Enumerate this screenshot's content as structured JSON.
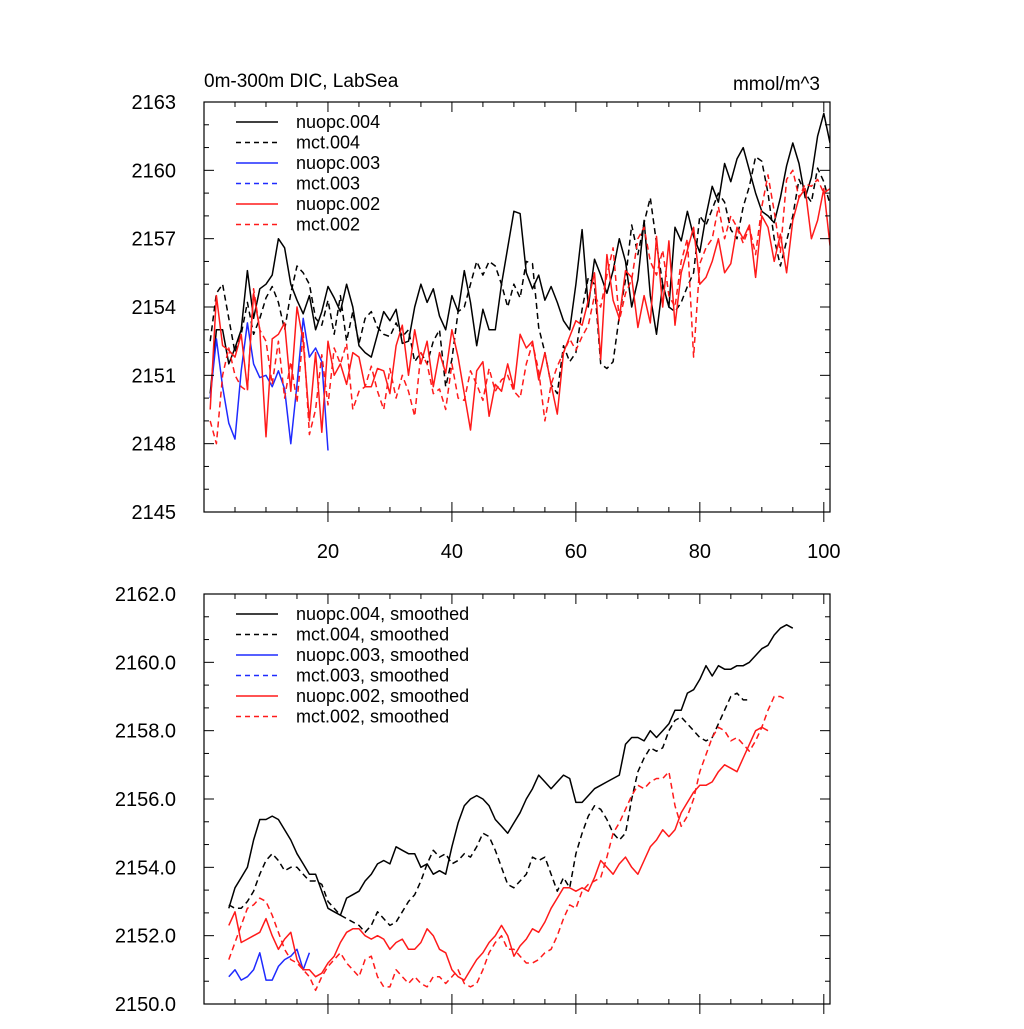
{
  "chart_data": [
    {
      "type": "line",
      "title": "0m-300m DIC, LabSea",
      "units_label": "mmol/m^3",
      "xlabel": "",
      "ylabel": "",
      "xlim": [
        0,
        101
      ],
      "ylim": [
        2145,
        2163
      ],
      "xticks": [
        20,
        40,
        60,
        80,
        100
      ],
      "yticks": [
        2145,
        2148,
        2151,
        2154,
        2157,
        2160,
        2163
      ],
      "ytick_labels": [
        "2145",
        "2148",
        "2151",
        "2154",
        "2157",
        "2160",
        "2163"
      ],
      "series": [
        {
          "name": "nuopc.004",
          "color": "#000000",
          "dash": "solid",
          "start_x": 1,
          "values": [
            2150.2,
            2153.0,
            2153.0,
            2151.5,
            2152.2,
            2153.0,
            2155.6,
            2153.5,
            2154.8,
            2155.0,
            2155.4,
            2157.0,
            2156.6,
            2155.0,
            2154.3,
            2153.7,
            2154.5,
            2153.0,
            2153.8,
            2154.9,
            2154.4,
            2153.8,
            2155.0,
            2154.0,
            2152.3,
            2152.0,
            2151.8,
            2152.8,
            2153.8,
            2153.4,
            2153.9,
            2152.4,
            2152.5,
            2154.0,
            2155.0,
            2154.2,
            2154.8,
            2153.6,
            2153.0,
            2154.5,
            2153.8,
            2155.6,
            2154.2,
            2152.3,
            2153.9,
            2153.0,
            2153.0,
            2155.0,
            2156.6,
            2158.2,
            2158.1,
            2155.5,
            2154.8,
            2155.4,
            2154.3,
            2154.9,
            2154.2,
            2153.4,
            2153.0,
            2155.0,
            2157.4,
            2154.0,
            2156.1,
            2155.4,
            2154.6,
            2155.6,
            2157.0,
            2156.0,
            2154.0,
            2155.2,
            2157.8,
            2154.5,
            2152.8,
            2155.0,
            2154.0,
            2157.5,
            2156.9,
            2158.2,
            2157.1,
            2156.4,
            2158.0,
            2159.3,
            2158.6,
            2160.3,
            2159.5,
            2160.5,
            2161.0,
            2160.0,
            2159.0,
            2158.2,
            2158.0,
            2157.7,
            2158.8,
            2160.2,
            2161.2,
            2160.3,
            2158.8,
            2159.7,
            2161.5,
            2162.5,
            2161.2
          ]
        },
        {
          "name": "mct.004",
          "color": "#000000",
          "dash": "6,4",
          "start_x": 1,
          "values": [
            2152.5,
            2154.6,
            2155.0,
            2153.5,
            2152.0,
            2152.8,
            2154.2,
            2152.8,
            2153.5,
            2154.4,
            2154.9,
            2154.2,
            2153.0,
            2154.6,
            2155.8,
            2155.5,
            2155.0,
            2153.5,
            2153.2,
            2154.3,
            2152.8,
            2154.5,
            2152.5,
            2153.8,
            2152.4,
            2153.5,
            2153.8,
            2153.1,
            2152.8,
            2152.7,
            2153.3,
            2152.7,
            2153.0,
            2151.6,
            2152.0,
            2151.5,
            2152.5,
            2153.0,
            2150.5,
            2151.7,
            2153.8,
            2154.0,
            2155.0,
            2156.0,
            2155.4,
            2156.0,
            2155.8,
            2155.0,
            2154.0,
            2155.0,
            2154.4,
            2156.0,
            2155.9,
            2153.1,
            2152.0,
            2150.6,
            2150.2,
            2152.3,
            2151.6,
            2152.0,
            2153.9,
            2155.3,
            2155.0,
            2151.5,
            2151.3,
            2151.6,
            2153.6,
            2155.2,
            2157.6,
            2156.3,
            2157.7,
            2158.8,
            2156.8,
            2155.0,
            2154.0,
            2153.8,
            2154.2,
            2154.9,
            2155.5,
            2158.0,
            2157.6,
            2158.3,
            2159.0,
            2158.6,
            2157.4,
            2157.0,
            2158.4,
            2159.3,
            2160.6,
            2160.4,
            2159.0,
            2157.0,
            2155.8,
            2156.9,
            2158.0,
            2159.6,
            2159.0,
            2158.6,
            2160.1,
            2159.5,
            2158.5
          ]
        },
        {
          "name": "nuopc.003",
          "color": "#1f2bff",
          "dash": "solid",
          "start_x": 1,
          "values": [
            2150.0,
            2152.6,
            2150.5,
            2148.9,
            2148.2,
            2151.2,
            2153.3,
            2151.5,
            2150.9,
            2151.0,
            2150.5,
            2151.2,
            2150.4,
            2148.0,
            2150.6,
            2153.5,
            2151.8,
            2152.2,
            2151.6,
            2147.7
          ]
        },
        {
          "name": "mct.003",
          "color": "#1f2bff",
          "dash": "6,4",
          "start_x": 1,
          "values": []
        },
        {
          "name": "nuopc.002",
          "color": "#ff1a1a",
          "dash": "solid",
          "start_x": 1,
          "values": [
            2149.5,
            2154.5,
            2152.3,
            2152.1,
            2151.8,
            2152.8,
            2150.4,
            2154.6,
            2153.0,
            2148.3,
            2152.6,
            2152.8,
            2153.3,
            2150.3,
            2154.0,
            2152.5,
            2149.0,
            2152.0,
            2148.5,
            2152.5,
            2151.0,
            2151.5,
            2150.6,
            2152.0,
            2151.8,
            2150.5,
            2150.5,
            2151.3,
            2151.2,
            2150.2,
            2152.3,
            2153.2,
            2151.0,
            2153.0,
            2151.5,
            2152.5,
            2150.5,
            2152.0,
            2151.1,
            2153.0,
            2151.8,
            2150.2,
            2148.6,
            2151.2,
            2151.6,
            2149.2,
            2150.6,
            2150.3,
            2151.5,
            2150.4,
            2152.8,
            2152.2,
            2152.5,
            2150.8,
            2152.0,
            2150.6,
            2149.3,
            2152.0,
            2152.7,
            2153.4,
            2153.2,
            2154.3,
            2155.5,
            2151.7,
            2156.3,
            2154.3,
            2153.5,
            2155.6,
            2155.3,
            2153.1,
            2154.5,
            2153.3,
            2157.1,
            2154.0,
            2156.9,
            2153.2,
            2155.5,
            2156.5,
            2157.5,
            2155.0,
            2155.3,
            2156.0,
            2157.0,
            2155.5,
            2155.9,
            2157.5,
            2157.0,
            2157.6,
            2155.3,
            2158.0,
            2157.5,
            2156.0,
            2157.2,
            2155.5,
            2157.8,
            2158.8,
            2159.2,
            2157.0,
            2157.8,
            2159.2,
            2156.7
          ]
        },
        {
          "name": "mct.002",
          "color": "#ff1a1a",
          "dash": "6,4",
          "start_x": 1,
          "values": [
            2149.0,
            2148.0,
            2151.0,
            2152.2,
            2151.0,
            2150.5,
            2150.3,
            2154.8,
            2153.0,
            2152.5,
            2150.6,
            2152.5,
            2150.0,
            2151.6,
            2149.8,
            2152.9,
            2148.4,
            2149.5,
            2151.9,
            2149.7,
            2152.2,
            2151.5,
            2152.4,
            2149.5,
            2150.3,
            2150.5,
            2151.4,
            2150.3,
            2149.5,
            2151.3,
            2150.0,
            2151.0,
            2150.3,
            2149.2,
            2152.0,
            2151.5,
            2150.2,
            2150.4,
            2149.5,
            2151.5,
            2150.0,
            2149.9,
            2151.2,
            2150.6,
            2149.9,
            2151.3,
            2150.3,
            2150.8,
            2151.0,
            2150.3,
            2150.0,
            2151.5,
            2152.4,
            2151.2,
            2149.0,
            2150.6,
            2151.4,
            2152.0,
            2152.6,
            2152.1,
            2152.7,
            2153.2,
            2154.5,
            2154.0,
            2155.4,
            2156.6,
            2153.4,
            2154.6,
            2155.2,
            2157.0,
            2157.5,
            2156.0,
            2155.4,
            2156.5,
            2154.5,
            2154.0,
            2156.0,
            2157.0,
            2151.8,
            2155.9,
            2156.6,
            2157.0,
            2158.4,
            2157.0,
            2158.0,
            2157.5,
            2156.8,
            2157.5,
            2156.3,
            2158.4,
            2159.8,
            2158.2,
            2156.4,
            2159.6,
            2160.0,
            2158.8,
            2159.4,
            2159.3,
            2159.6,
            2159.0,
            2159.2
          ]
        }
      ],
      "legend": [
        "nuopc.004",
        "mct.004",
        "nuopc.003",
        "mct.003",
        "nuopc.002",
        "mct.002"
      ],
      "legend_location": "top-left"
    },
    {
      "type": "line",
      "title": "",
      "xlabel": "",
      "ylabel": "",
      "xlim": [
        0,
        101
      ],
      "ylim": [
        2150,
        2162
      ],
      "xticks": [
        20,
        40,
        60,
        80,
        100
      ],
      "yticks": [
        2150,
        2152,
        2154,
        2156,
        2158,
        2160,
        2162
      ],
      "ytick_labels": [
        "2150.0",
        "2152.0",
        "2154.0",
        "2156.0",
        "2158.0",
        "2160.0",
        "2162.0"
      ],
      "series": [
        {
          "name": "nuopc.004, smoothed",
          "color": "#000000",
          "dash": "solid",
          "start_x": 4,
          "values": [
            2152.8,
            2153.4,
            2153.7,
            2154.0,
            2154.8,
            2155.4,
            2155.4,
            2155.5,
            2155.4,
            2155.1,
            2154.8,
            2154.4,
            2154.1,
            2153.8,
            2153.8,
            2153.3,
            2152.8,
            2152.7,
            2152.6,
            2153.1,
            2153.2,
            2153.3,
            2153.6,
            2153.8,
            2154.1,
            2154.2,
            2154.1,
            2154.6,
            2154.5,
            2154.4,
            2154.4,
            2154.0,
            2154.1,
            2153.8,
            2153.9,
            2153.8,
            2154.6,
            2155.3,
            2155.8,
            2156.0,
            2156.1,
            2156.0,
            2155.8,
            2155.4,
            2155.2,
            2155.0,
            2155.3,
            2155.6,
            2156.0,
            2156.3,
            2156.7,
            2156.5,
            2156.3,
            2156.5,
            2156.7,
            2156.6,
            2155.9,
            2155.9,
            2156.1,
            2156.3,
            2156.4,
            2156.5,
            2156.6,
            2156.7,
            2157.6,
            2157.8,
            2157.8,
            2157.7,
            2158.0,
            2157.8,
            2158.0,
            2158.2,
            2158.6,
            2158.6,
            2159.1,
            2159.2,
            2159.5,
            2159.9,
            2159.6,
            2159.9,
            2159.8,
            2159.8,
            2159.9,
            2159.9,
            2160.0,
            2160.2,
            2160.4,
            2160.5,
            2160.8,
            2161.0,
            2161.1,
            2161.0
          ]
        },
        {
          "name": "mct.004, smoothed",
          "color": "#000000",
          "dash": "6,4",
          "start_x": 4,
          "values": [
            2152.9,
            2152.8,
            2152.8,
            2153.0,
            2153.3,
            2153.8,
            2154.2,
            2154.4,
            2154.2,
            2153.9,
            2154.0,
            2154.0,
            2153.8,
            2153.6,
            2153.6,
            2153.5,
            2153.0,
            2152.8,
            2152.6,
            2152.5,
            2152.4,
            2152.3,
            2152.1,
            2152.3,
            2152.7,
            2152.5,
            2152.3,
            2152.4,
            2152.7,
            2153.0,
            2153.2,
            2153.6,
            2154.1,
            2154.5,
            2154.3,
            2154.4,
            2154.1,
            2154.2,
            2154.4,
            2154.3,
            2154.6,
            2155.0,
            2154.9,
            2154.5,
            2154.0,
            2153.5,
            2153.4,
            2153.6,
            2153.8,
            2154.3,
            2154.2,
            2154.3,
            2153.8,
            2153.3,
            2153.7,
            2153.4,
            2154.4,
            2155.0,
            2155.5,
            2155.8,
            2155.7,
            2155.4,
            2155.0,
            2154.8,
            2155.0,
            2156.0,
            2156.8,
            2157.2,
            2157.5,
            2157.4,
            2157.5,
            2158.0,
            2158.3,
            2158.4,
            2158.2,
            2158.0,
            2157.8,
            2157.7,
            2157.8,
            2158.2,
            2158.6,
            2159.0,
            2159.1,
            2158.9,
            2158.9
          ]
        },
        {
          "name": "nuopc.003, smoothed",
          "color": "#1f2bff",
          "dash": "solid",
          "start_x": 4,
          "values": [
            2150.8,
            2151.0,
            2150.7,
            2150.8,
            2151.0,
            2151.5,
            2150.7,
            2150.7,
            2151.1,
            2151.3,
            2151.4,
            2151.6,
            2151.0,
            2151.5
          ]
        },
        {
          "name": "mct.003, smoothed",
          "color": "#1f2bff",
          "dash": "6,4",
          "start_x": 4,
          "values": []
        },
        {
          "name": "nuopc.002, smoothed",
          "color": "#ff1a1a",
          "dash": "solid",
          "start_x": 4,
          "values": [
            2152.3,
            2152.7,
            2151.8,
            2151.9,
            2152.0,
            2152.1,
            2152.5,
            2152.0,
            2151.6,
            2151.9,
            2152.1,
            2151.3,
            2151.0,
            2151.0,
            2150.8,
            2150.9,
            2151.2,
            2151.4,
            2151.8,
            2152.1,
            2152.2,
            2152.2,
            2152.0,
            2151.9,
            2152.0,
            2151.9,
            2151.6,
            2151.8,
            2151.9,
            2151.6,
            2151.6,
            2151.8,
            2152.2,
            2152.0,
            2151.6,
            2151.5,
            2151.0,
            2150.8,
            2150.7,
            2151.0,
            2151.3,
            2151.5,
            2151.8,
            2152.0,
            2152.3,
            2152.0,
            2151.4,
            2151.7,
            2151.9,
            2152.2,
            2152.1,
            2152.4,
            2152.8,
            2153.1,
            2153.4,
            2153.4,
            2153.3,
            2153.4,
            2153.3,
            2153.7,
            2154.2,
            2154.0,
            2153.8,
            2154.1,
            2154.3,
            2154.0,
            2153.8,
            2154.2,
            2154.6,
            2154.8,
            2155.1,
            2154.9,
            2155.1,
            2155.6,
            2155.9,
            2156.2,
            2156.4,
            2156.4,
            2156.5,
            2156.8,
            2157.0,
            2156.9,
            2156.8,
            2157.2,
            2157.6,
            2158.0,
            2158.1,
            2158.0
          ]
        },
        {
          "name": "mct.002, smoothed",
          "color": "#ff1a1a",
          "dash": "6,4",
          "start_x": 4,
          "values": [
            2151.3,
            2151.8,
            2152.3,
            2152.8,
            2152.9,
            2153.1,
            2153.0,
            2152.6,
            2152.1,
            2151.6,
            2151.3,
            2151.2,
            2151.0,
            2150.8,
            2150.4,
            2150.8,
            2151.1,
            2151.3,
            2151.5,
            2151.2,
            2151.0,
            2150.8,
            2151.3,
            2151.4,
            2150.8,
            2150.5,
            2150.5,
            2151.0,
            2150.8,
            2150.6,
            2150.8,
            2150.6,
            2150.5,
            2150.8,
            2150.8,
            2150.6,
            2150.8,
            2151.0,
            2150.6,
            2150.5,
            2150.6,
            2151.0,
            2151.5,
            2151.8,
            2152.0,
            2151.6,
            2151.6,
            2151.4,
            2151.2,
            2151.2,
            2151.3,
            2151.5,
            2151.6,
            2152.0,
            2152.5,
            2152.9,
            2152.8,
            2153.3,
            2153.5,
            2153.6,
            2153.7,
            2154.3,
            2155.0,
            2155.3,
            2155.7,
            2156.1,
            2156.4,
            2156.3,
            2156.5,
            2156.6,
            2156.6,
            2156.8,
            2155.8,
            2155.2,
            2155.5,
            2156.0,
            2156.8,
            2157.3,
            2157.8,
            2158.1,
            2158.0,
            2157.7,
            2157.8,
            2157.6,
            2157.4,
            2157.7,
            2158.1,
            2158.6,
            2159.0,
            2159.0,
            2158.9
          ]
        }
      ],
      "legend": [
        "nuopc.004, smoothed",
        "mct.004, smoothed",
        "nuopc.003, smoothed",
        "mct.003, smoothed",
        "nuopc.002, smoothed",
        "mct.002, smoothed"
      ],
      "legend_location": "top-left"
    }
  ]
}
